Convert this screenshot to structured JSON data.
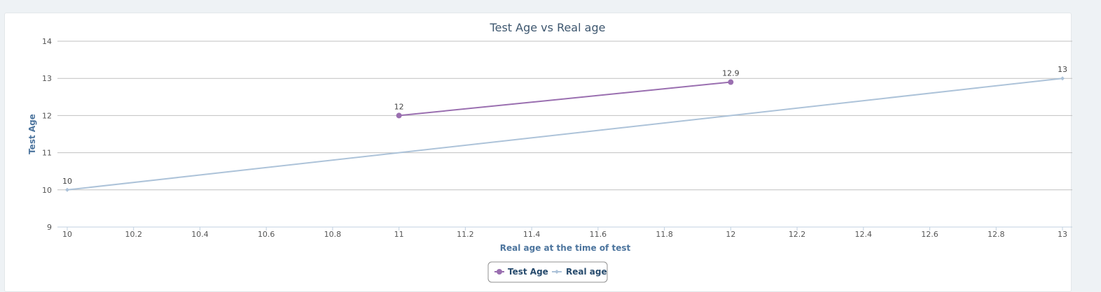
{
  "chart_data": {
    "type": "line",
    "title": "Test Age vs Real age",
    "xlabel": "Real age at the time of test",
    "ylabel": "Test Age",
    "xlim": [
      10,
      13
    ],
    "ylim": [
      9,
      14
    ],
    "x_ticks": [
      "10",
      "10.2",
      "10.4",
      "10.6",
      "10.8",
      "11",
      "11.2",
      "11.4",
      "11.6",
      "11.8",
      "12",
      "12.2",
      "12.4",
      "12.6",
      "12.8",
      "13"
    ],
    "y_ticks": [
      "9",
      "10",
      "11",
      "12",
      "13",
      "14"
    ],
    "grid": true,
    "legend_position": "bottom-center",
    "series": [
      {
        "name": "Test Age",
        "color": "#9a6fb0",
        "marker": "circle",
        "points": [
          {
            "x": 11,
            "y": 12,
            "label": "12"
          },
          {
            "x": 12,
            "y": 12.9,
            "label": "12.9"
          }
        ]
      },
      {
        "name": "Real age",
        "color": "#adc3d9",
        "marker": "diamond",
        "points": [
          {
            "x": 10,
            "y": 10,
            "label": "10"
          },
          {
            "x": 13,
            "y": 13,
            "label": "13"
          }
        ]
      }
    ]
  }
}
